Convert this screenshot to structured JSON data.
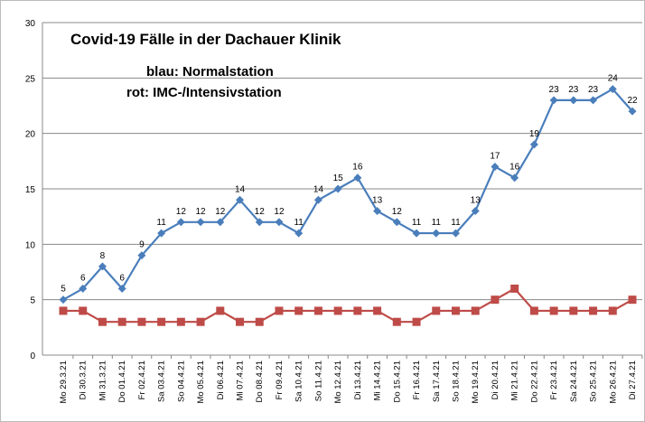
{
  "chart_data": {
    "type": "line",
    "title": "Covid-19 Fälle in  der Dachauer Klinik",
    "legend_lines": [
      "blau: Normalstation",
      "rot: IMC-/Intensivstation"
    ],
    "xlabel": "",
    "ylabel": "",
    "ylim": [
      0,
      30
    ],
    "yticks": [
      0,
      5,
      10,
      15,
      20,
      25,
      30
    ],
    "grid": "horizontal",
    "categories": [
      "Mo 29.3.21",
      "Di 30.3.21",
      "Mi 31.3.21",
      "Do 01.4.21",
      "Fr 02.4.21",
      "Sa 03.4.21",
      "So 04.4.21",
      "Mo 05.4.21",
      "Di 06.4.21",
      "Mi 07.4.21",
      "Do 08.4.21",
      "Fr 09.4.21",
      "Sa 10.4.21",
      "So 11.4.21",
      "Mo 12.4.21",
      "Di 13.4.21",
      "Mi 14.4.21",
      "Do 15.4.21",
      "Fr 16.4.21",
      "Sa 17.4.21",
      "So 18.4.21",
      "Mo 19.4.21",
      "Di 20.4.21",
      "Mi 21.4.21",
      "Do 22.4.21",
      "Fr 23.4.21",
      "Sa 24.4.21",
      "So 25.4.21",
      "Mo 26.4.21",
      "Di 27.4.21"
    ],
    "series": [
      {
        "name": "Normalstation",
        "color": "#4a7ebb",
        "marker": "diamond",
        "labels": true,
        "values": [
          5,
          6,
          8,
          6,
          9,
          11,
          12,
          12,
          12,
          14,
          12,
          12,
          11,
          14,
          15,
          16,
          13,
          12,
          11,
          11,
          11,
          13,
          17,
          16,
          19,
          23,
          23,
          23,
          24,
          22
        ]
      },
      {
        "name": "IMC-/Intensivstation",
        "color": "#be4b48",
        "marker": "square",
        "labels": false,
        "values": [
          4,
          4,
          3,
          3,
          3,
          3,
          3,
          3,
          4,
          3,
          3,
          4,
          4,
          4,
          4,
          4,
          4,
          3,
          3,
          4,
          4,
          4,
          5,
          6,
          4,
          4,
          4,
          4,
          4,
          5
        ]
      }
    ]
  }
}
